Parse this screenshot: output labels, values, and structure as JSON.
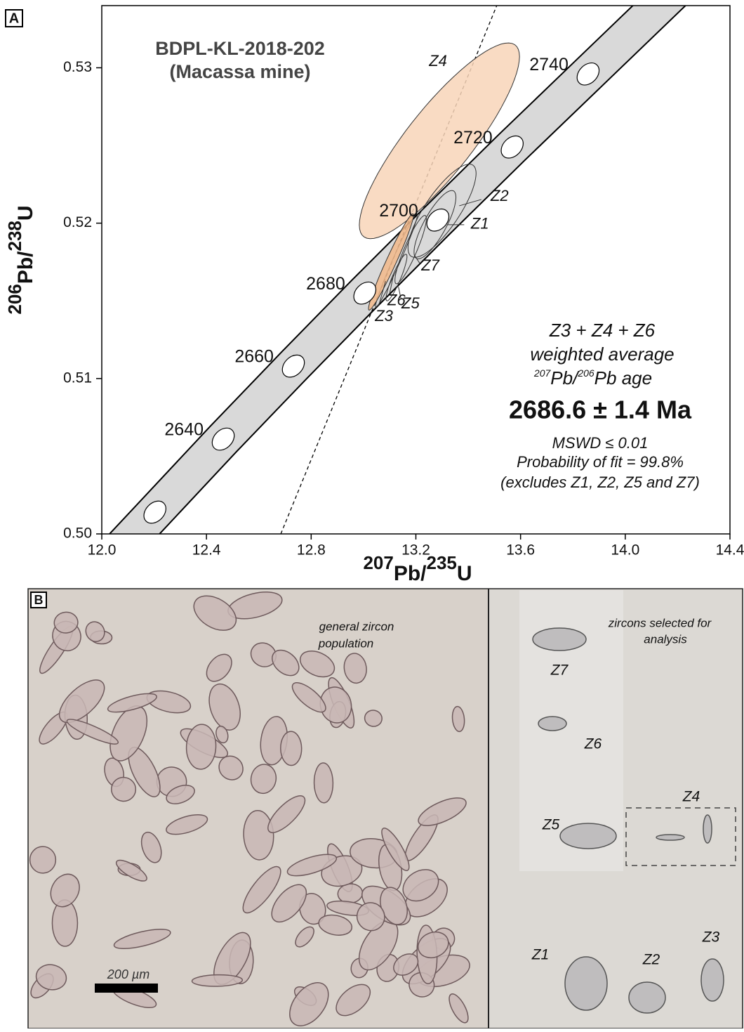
{
  "chart_data": {
    "type": "concordia",
    "panel_label": "A",
    "title_lines": [
      "BDPL-KL-2018-202",
      "(Macassa mine)"
    ],
    "xlabel": [
      "207",
      "Pb/",
      "235",
      "U"
    ],
    "ylabel": [
      "206",
      "Pb/",
      "238",
      "U"
    ],
    "xlim": [
      12.0,
      14.4
    ],
    "ylim": [
      0.5,
      0.534
    ],
    "xticks": [
      {
        "value": 12.0,
        "label": "12.0"
      },
      {
        "value": 12.4,
        "label": "12.4"
      },
      {
        "value": 12.8,
        "label": "12.8"
      },
      {
        "value": 13.2,
        "label": "13.2"
      },
      {
        "value": 13.6,
        "label": "13.6"
      },
      {
        "value": 14.0,
        "label": "14.0"
      },
      {
        "value": 14.4,
        "label": "14.4"
      }
    ],
    "yticks": [
      {
        "value": 0.5,
        "label": "0.50"
      },
      {
        "value": 0.51,
        "label": "0.51"
      },
      {
        "value": 0.52,
        "label": "0.52"
      },
      {
        "value": 0.53,
        "label": "0.53"
      }
    ],
    "concordia": {
      "ages": [
        null,
        2640,
        2660,
        2680,
        2700,
        2720,
        2740
      ],
      "x": [
        12.203,
        12.464,
        12.732,
        13.005,
        13.284,
        13.568,
        13.858
      ],
      "y": [
        0.5014,
        0.5061,
        0.5108,
        0.5155,
        0.5202,
        0.5249,
        0.5296
      ],
      "band_color": "#d9d9d9"
    },
    "discordia": {
      "x": [
        12.684,
        13.509
      ],
      "y": [
        0.5,
        0.534
      ]
    },
    "ellipses": [
      {
        "name": "Z4",
        "x": 13.29,
        "y": 0.5253,
        "sx": 0.306,
        "sy": 0.0063,
        "rho": 0.86,
        "color": "#f8d5b8"
      },
      {
        "name": "Z2",
        "x": 13.3,
        "y": 0.5208,
        "sx": 0.13,
        "sy": 0.003,
        "rho": 0.8,
        "color": null
      },
      {
        "name": "Z1",
        "x": 13.273,
        "y": 0.5199,
        "sx": 0.08,
        "sy": 0.0022,
        "rho": 0.8,
        "color": null
      },
      {
        "name": "Z7",
        "x": 13.18,
        "y": 0.5183,
        "sx": 0.06,
        "sy": 0.0022,
        "rho": 0.9,
        "color": null
      },
      {
        "name": "Z5",
        "x": 13.126,
        "y": 0.5165,
        "sx": 0.04,
        "sy": 0.0015,
        "rho": 0.9,
        "color": null
      },
      {
        "name": "Z6",
        "x": 13.126,
        "y": 0.5176,
        "sx": 0.08,
        "sy": 0.003,
        "rho": 0.98,
        "color": null
      },
      {
        "name": "Z3",
        "x": 13.105,
        "y": 0.5175,
        "sx": 0.086,
        "sy": 0.0031,
        "rho": 0.97,
        "color": "#f2b98a"
      }
    ],
    "annotation": {
      "line1": "Z3 + Z4 + Z6",
      "line2": "weighted average",
      "line3": [
        "207",
        "Pb/",
        "206",
        "Pb age"
      ],
      "result": "2686.6 ± 1.4 Ma",
      "mswd": "MSWD ≤ 0.01",
      "probability": "Probability of fit = 99.8%",
      "excludes": "(excludes Z1, Z2, Z5 and Z7)"
    }
  },
  "photo_panel": {
    "panel_label": "B",
    "left_caption": [
      "general zircon",
      "population"
    ],
    "right_caption": [
      "zircons selected for",
      "analysis"
    ],
    "grain_labels": [
      "Z7",
      "Z6",
      "Z5",
      "Z4",
      "Z1",
      "Z2",
      "Z3"
    ],
    "scale_label": "200 µm"
  }
}
